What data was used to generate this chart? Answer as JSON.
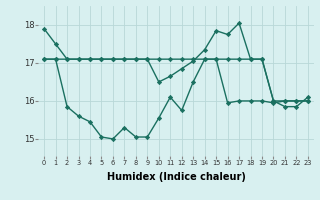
{
  "line1": [
    17.9,
    17.5,
    17.1,
    17.1,
    17.1,
    17.1,
    17.1,
    17.1,
    17.1,
    17.1,
    16.5,
    16.65,
    16.85,
    17.05,
    17.35,
    17.85,
    17.75,
    18.05,
    17.1,
    17.1,
    16.0,
    15.85,
    15.85,
    16.1
  ],
  "line2": [
    17.1,
    17.1,
    17.1,
    17.1,
    17.1,
    17.1,
    17.1,
    17.1,
    17.1,
    17.1,
    17.1,
    17.1,
    17.1,
    17.1,
    17.1,
    17.1,
    17.1,
    17.1,
    17.1,
    17.1,
    16.0,
    16.0,
    16.0,
    16.0
  ],
  "line3": [
    17.1,
    17.1,
    15.85,
    15.6,
    15.45,
    15.05,
    15.0,
    15.3,
    15.05,
    15.05,
    15.55,
    16.1,
    15.75,
    16.5,
    17.1,
    17.1,
    15.95,
    16.0,
    16.0,
    16.0,
    15.95,
    16.0,
    16.0,
    16.0
  ],
  "x": [
    0,
    1,
    2,
    3,
    4,
    5,
    6,
    7,
    8,
    9,
    10,
    11,
    12,
    13,
    14,
    15,
    16,
    17,
    18,
    19,
    20,
    21,
    22,
    23
  ],
  "color": "#1a7060",
  "bg_color": "#d8f0f0",
  "grid_color": "#b8d8d8",
  "ylabel_vals": [
    15,
    16,
    17,
    18
  ],
  "xlim": [
    -0.5,
    23.5
  ],
  "ylim": [
    14.55,
    18.5
  ],
  "xlabel": "Humidex (Indice chaleur)",
  "xtick_labels": [
    "0",
    "1",
    "2",
    "3",
    "4",
    "5",
    "6",
    "7",
    "8",
    "9",
    "10",
    "11",
    "12",
    "13",
    "14",
    "15",
    "16",
    "17",
    "18",
    "19",
    "20",
    "21",
    "22",
    "23"
  ],
  "marker": "D",
  "markersize": 2.2,
  "linewidth": 1.0,
  "xlabel_fontsize": 7,
  "xtick_fontsize": 4.8,
  "ytick_fontsize": 6.0
}
